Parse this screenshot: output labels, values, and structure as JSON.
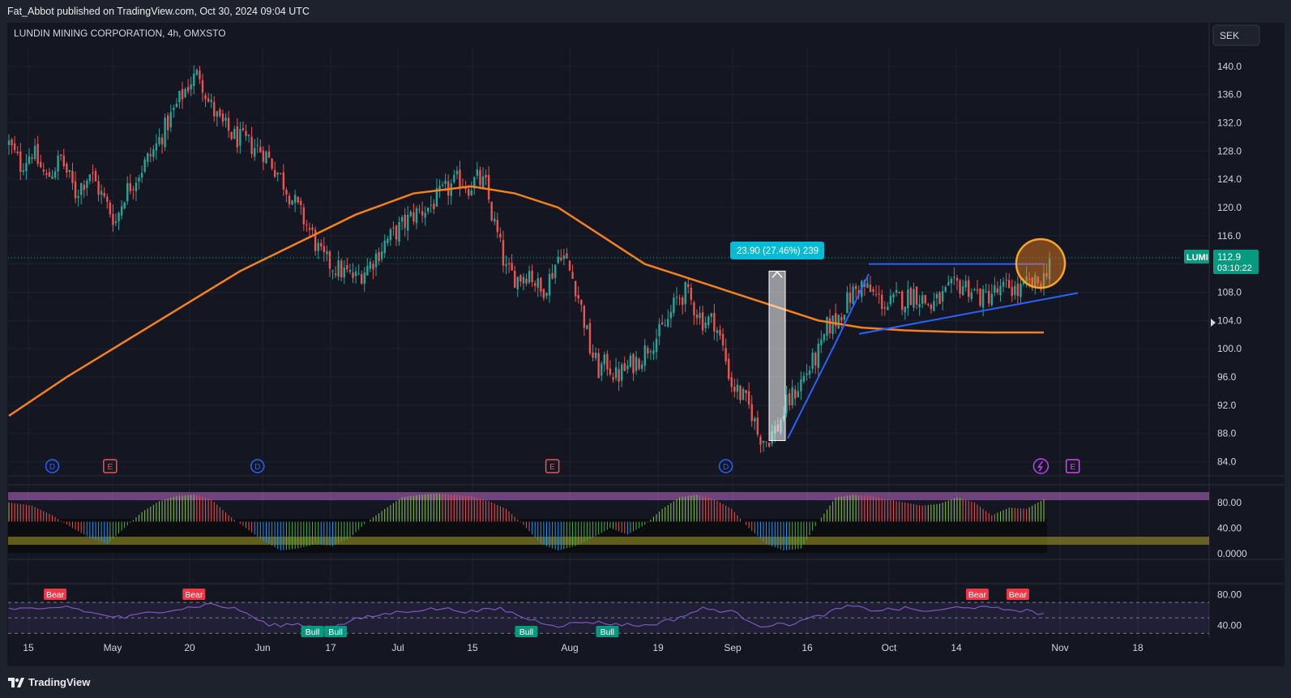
{
  "header": {
    "publish_text": "Fat_Abbot published on TradingView.com, Oct 30, 2024 09:04 UTC"
  },
  "symbol": {
    "title": "LUNDIN MINING CORPORATION, 4h, OMXSTO",
    "currency": "SEK",
    "ticker": "LUMI",
    "last_price": "112.9",
    "countdown": "03:10:22"
  },
  "measure": {
    "label": "23.90 (27.46%) 239"
  },
  "footer": {
    "brand": "TradingView"
  },
  "colors": {
    "bg": "#141722",
    "up": "#26a69a",
    "down": "#ef5350",
    "ma": "#f5801f",
    "trend": "#2962ff",
    "measure": "#00bcd4",
    "ticker": "#089981"
  },
  "chart_data": {
    "type": "candlestick",
    "price_axis": {
      "ticks": [
        140.0,
        136.0,
        132.0,
        128.0,
        124.0,
        120.0,
        116.0,
        112.0,
        108.0,
        104.0,
        100.0,
        96.0,
        92.0,
        88.0,
        84.0
      ],
      "range": [
        82.0,
        142.5
      ]
    },
    "time_axis": {
      "labels": [
        "15",
        "May",
        "20",
        "Jun",
        "17",
        "Jul",
        "15",
        "Aug",
        "19",
        "Sep",
        "16",
        "Oct",
        "14",
        "Nov",
        "18"
      ]
    },
    "price_path": [
      [
        0,
        129
      ],
      [
        4,
        126
      ],
      [
        8,
        128
      ],
      [
        13,
        124
      ],
      [
        18,
        127
      ],
      [
        23,
        122
      ],
      [
        28,
        125
      ],
      [
        33,
        121
      ],
      [
        37,
        118
      ],
      [
        40,
        122
      ],
      [
        45,
        125
      ],
      [
        50,
        128
      ],
      [
        55,
        132
      ],
      [
        60,
        136
      ],
      [
        63,
        138
      ],
      [
        66,
        139
      ],
      [
        69,
        135
      ],
      [
        73,
        132
      ],
      [
        78,
        130
      ],
      [
        83,
        129
      ],
      [
        88,
        128
      ],
      [
        93,
        125
      ],
      [
        97,
        122
      ],
      [
        101,
        119
      ],
      [
        105,
        116
      ],
      [
        108,
        113
      ],
      [
        111,
        112
      ],
      [
        115,
        111
      ],
      [
        120,
        110
      ],
      [
        125,
        112
      ],
      [
        130,
        115
      ],
      [
        135,
        117
      ],
      [
        140,
        119
      ],
      [
        145,
        120
      ],
      [
        150,
        122
      ],
      [
        153,
        123
      ],
      [
        156,
        124
      ],
      [
        159,
        123
      ],
      [
        162,
        124
      ],
      [
        165,
        123
      ],
      [
        167,
        119
      ],
      [
        169,
        116
      ],
      [
        172,
        111
      ],
      [
        176,
        110
      ],
      [
        180,
        111
      ],
      [
        184,
        108
      ],
      [
        187,
        110
      ],
      [
        191,
        114
      ],
      [
        193,
        112
      ],
      [
        196,
        109
      ],
      [
        199,
        104
      ],
      [
        201,
        100
      ],
      [
        204,
        97
      ],
      [
        207,
        98
      ],
      [
        210,
        96
      ],
      [
        213,
        97
      ],
      [
        216,
        98
      ],
      [
        219,
        99
      ],
      [
        222,
        101
      ],
      [
        225,
        102
      ],
      [
        228,
        104
      ],
      [
        231,
        107
      ],
      [
        234,
        108
      ],
      [
        237,
        106
      ],
      [
        240,
        104
      ],
      [
        244,
        104
      ],
      [
        247,
        100
      ],
      [
        250,
        95
      ],
      [
        254,
        93
      ],
      [
        257,
        91
      ],
      [
        259,
        88
      ],
      [
        262,
        87
      ],
      [
        264,
        88
      ],
      [
        266,
        89
      ],
      [
        269,
        92
      ],
      [
        272,
        94
      ],
      [
        275,
        96
      ],
      [
        278,
        98
      ],
      [
        281,
        100
      ],
      [
        283,
        103
      ],
      [
        286,
        104
      ],
      [
        289,
        106
      ],
      [
        292,
        108
      ],
      [
        295,
        109
      ],
      [
        298,
        108
      ],
      [
        301,
        107
      ],
      [
        304,
        106
      ],
      [
        307,
        107
      ],
      [
        310,
        107
      ],
      [
        313,
        108
      ],
      [
        316,
        107
      ],
      [
        319,
        106
      ],
      [
        322,
        107
      ],
      [
        325,
        108
      ],
      [
        328,
        109
      ],
      [
        331,
        109
      ],
      [
        334,
        108
      ],
      [
        337,
        107
      ],
      [
        340,
        108
      ],
      [
        343,
        108
      ],
      [
        346,
        109
      ],
      [
        349,
        108
      ],
      [
        352,
        109
      ],
      [
        355,
        109
      ],
      [
        358,
        110
      ],
      [
        360,
        112.9
      ]
    ],
    "series": [
      {
        "name": "",
        "type": "ma_line",
        "points": [
          [
            0,
            90.5
          ],
          [
            20,
            96
          ],
          [
            40,
            101
          ],
          [
            60,
            106
          ],
          [
            80,
            111
          ],
          [
            100,
            115
          ],
          [
            120,
            119
          ],
          [
            140,
            122
          ],
          [
            160,
            123
          ],
          [
            175,
            122
          ],
          [
            190,
            120
          ],
          [
            205,
            116
          ],
          [
            220,
            112
          ],
          [
            235,
            110
          ],
          [
            250,
            108
          ],
          [
            265,
            106
          ],
          [
            280,
            104
          ],
          [
            295,
            103
          ],
          [
            310,
            102.6
          ],
          [
            325,
            102.4
          ],
          [
            340,
            102.3
          ],
          [
            358,
            102.3
          ]
        ]
      }
    ],
    "annotations": {
      "horizontal_resistance": 112.0,
      "rising_support_from": [
        300,
        102.1
      ],
      "rising_support_to": [
        370,
        107.9
      ],
      "measure_from": 87.0,
      "measure_to": 111.0,
      "measure_label": "23.90 (27.46%) 239"
    },
    "event_markers": [
      {
        "type": "D",
        "x": 15
      },
      {
        "type": "E",
        "x": 35
      },
      {
        "type": "D",
        "x": 86
      },
      {
        "type": "E",
        "x": 188
      },
      {
        "type": "D",
        "x": 248
      },
      {
        "type": "lightning",
        "x": 357
      },
      {
        "type": "E",
        "x": 368
      }
    ],
    "oscillator_1": {
      "ticks": [
        "80.00",
        "40.00",
        "0.0000"
      ],
      "range": [
        0,
        100
      ],
      "values": [
        [
          0,
          80
        ],
        [
          8,
          75
        ],
        [
          15,
          60
        ],
        [
          22,
          40
        ],
        [
          28,
          25
        ],
        [
          34,
          15
        ],
        [
          40,
          40
        ],
        [
          46,
          65
        ],
        [
          52,
          82
        ],
        [
          58,
          90
        ],
        [
          64,
          92
        ],
        [
          70,
          85
        ],
        [
          76,
          60
        ],
        [
          82,
          40
        ],
        [
          88,
          20
        ],
        [
          94,
          5
        ],
        [
          100,
          8
        ],
        [
          106,
          15
        ],
        [
          112,
          12
        ],
        [
          118,
          25
        ],
        [
          124,
          50
        ],
        [
          130,
          70
        ],
        [
          136,
          88
        ],
        [
          142,
          92
        ],
        [
          148,
          94
        ],
        [
          154,
          92
        ],
        [
          160,
          90
        ],
        [
          166,
          82
        ],
        [
          172,
          70
        ],
        [
          178,
          45
        ],
        [
          184,
          15
        ],
        [
          190,
          5
        ],
        [
          196,
          12
        ],
        [
          202,
          25
        ],
        [
          208,
          40
        ],
        [
          214,
          30
        ],
        [
          220,
          45
        ],
        [
          226,
          70
        ],
        [
          232,
          88
        ],
        [
          238,
          92
        ],
        [
          244,
          85
        ],
        [
          250,
          70
        ],
        [
          256,
          40
        ],
        [
          262,
          15
        ],
        [
          268,
          5
        ],
        [
          274,
          8
        ],
        [
          280,
          50
        ],
        [
          286,
          88
        ],
        [
          292,
          92
        ],
        [
          298,
          90
        ],
        [
          304,
          85
        ],
        [
          310,
          80
        ],
        [
          316,
          75
        ],
        [
          322,
          78
        ],
        [
          328,
          88
        ],
        [
          334,
          80
        ],
        [
          340,
          60
        ],
        [
          346,
          72
        ],
        [
          352,
          70
        ],
        [
          358,
          85
        ]
      ]
    },
    "oscillator_2": {
      "ticks": [
        "80.00",
        "40.00"
      ],
      "range": [
        25,
        90
      ],
      "values": [
        [
          0,
          62
        ],
        [
          10,
          60
        ],
        [
          20,
          65
        ],
        [
          30,
          55
        ],
        [
          40,
          50
        ],
        [
          50,
          58
        ],
        [
          60,
          62
        ],
        [
          70,
          68
        ],
        [
          80,
          60
        ],
        [
          90,
          40
        ],
        [
          100,
          42
        ],
        [
          110,
          35
        ],
        [
          120,
          48
        ],
        [
          130,
          55
        ],
        [
          140,
          60
        ],
        [
          150,
          62
        ],
        [
          160,
          58
        ],
        [
          170,
          62
        ],
        [
          180,
          48
        ],
        [
          190,
          40
        ],
        [
          200,
          45
        ],
        [
          210,
          42
        ],
        [
          220,
          40
        ],
        [
          230,
          48
        ],
        [
          240,
          62
        ],
        [
          250,
          58
        ],
        [
          260,
          40
        ],
        [
          270,
          42
        ],
        [
          280,
          52
        ],
        [
          290,
          65
        ],
        [
          300,
          60
        ],
        [
          310,
          62
        ],
        [
          320,
          58
        ],
        [
          330,
          65
        ],
        [
          340,
          62
        ],
        [
          350,
          60
        ],
        [
          358,
          55
        ]
      ],
      "labels": [
        {
          "text": "Bear",
          "x": 16
        },
        {
          "text": "Bear",
          "x": 64
        },
        {
          "text": "Bull",
          "x": 105
        },
        {
          "text": "Bull",
          "x": 113
        },
        {
          "text": "Bull",
          "x": 179
        },
        {
          "text": "Bull",
          "x": 207
        },
        {
          "text": "Bear",
          "x": 335
        },
        {
          "text": "Bear",
          "x": 349
        }
      ]
    }
  }
}
